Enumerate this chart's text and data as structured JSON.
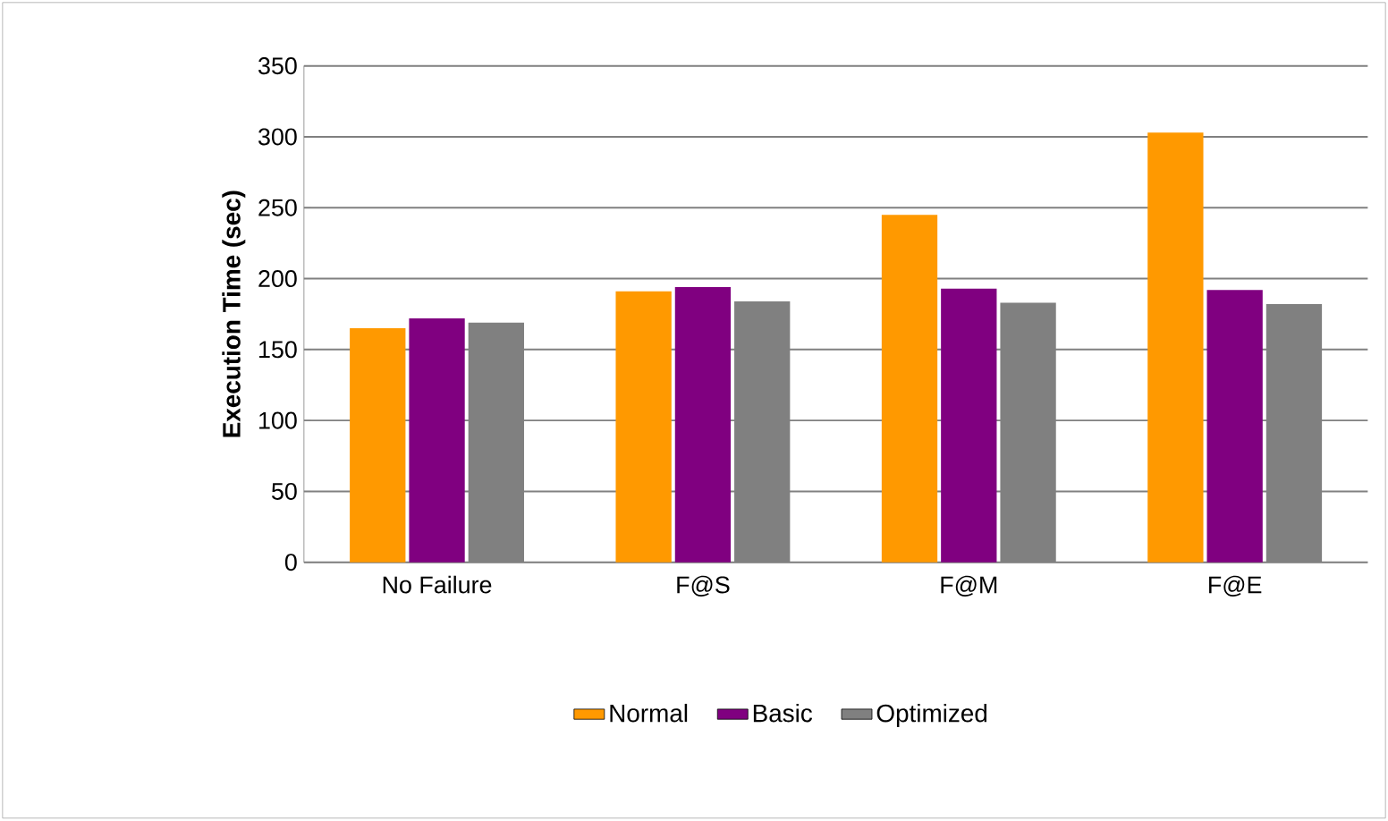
{
  "chart_data": {
    "type": "bar",
    "ylabel": "Execution Time (sec)",
    "categories": [
      "No Failure",
      "F@S",
      "F@M",
      "F@E"
    ],
    "series": [
      {
        "name": "Normal",
        "color": "#ff9900",
        "values": [
          165,
          191,
          245,
          303
        ]
      },
      {
        "name": "Basic",
        "color": "#800080",
        "values": [
          172,
          194,
          193,
          192
        ]
      },
      {
        "name": "Optimized",
        "color": "#808080",
        "values": [
          169,
          184,
          183,
          182
        ]
      }
    ],
    "ylim": [
      0,
      350
    ],
    "yticks": [
      0,
      50,
      100,
      150,
      200,
      250,
      300,
      350
    ],
    "grid": "y",
    "legend": "bottom"
  }
}
